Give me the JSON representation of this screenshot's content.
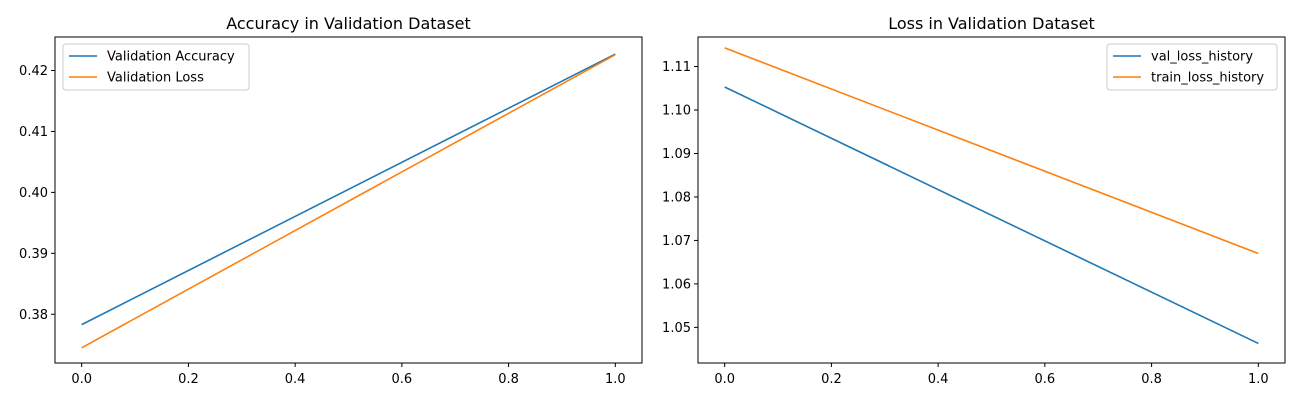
{
  "chart_data": [
    {
      "type": "line",
      "title": "Accuracy in Validation Dataset",
      "xlabel": "",
      "ylabel": "",
      "xlim": [
        -0.05,
        1.05
      ],
      "ylim": [
        0.372,
        0.4255
      ],
      "xticks": [
        0.0,
        0.2,
        0.4,
        0.6,
        0.8,
        1.0
      ],
      "xtick_labels": [
        "0.0",
        "0.2",
        "0.4",
        "0.6",
        "0.8",
        "1.0"
      ],
      "yticks": [
        0.38,
        0.39,
        0.4,
        0.41,
        0.42
      ],
      "ytick_labels": [
        "0.38",
        "0.39",
        "0.40",
        "0.41",
        "0.42"
      ],
      "grid": false,
      "legend_position": "upper-left",
      "series": [
        {
          "name": "Validation Accuracy",
          "color": "#1f77b4",
          "x": [
            0,
            1
          ],
          "y": [
            0.3783,
            0.4227
          ]
        },
        {
          "name": "Validation Loss",
          "color": "#ff7f0e",
          "x": [
            0,
            1
          ],
          "y": [
            0.3745,
            0.4226
          ]
        }
      ]
    },
    {
      "type": "line",
      "title": "Loss in Validation Dataset",
      "xlabel": "",
      "ylabel": "",
      "xlim": [
        -0.05,
        1.05
      ],
      "ylim": [
        1.0418,
        1.1168
      ],
      "xticks": [
        0.0,
        0.2,
        0.4,
        0.6,
        0.8,
        1.0
      ],
      "xtick_labels": [
        "0.0",
        "0.2",
        "0.4",
        "0.6",
        "0.8",
        "1.0"
      ],
      "yticks": [
        1.05,
        1.06,
        1.07,
        1.08,
        1.09,
        1.1,
        1.11
      ],
      "ytick_labels": [
        "1.05",
        "1.06",
        "1.07",
        "1.08",
        "1.09",
        "1.10",
        "1.11"
      ],
      "grid": false,
      "legend_position": "upper-right",
      "series": [
        {
          "name": "val_loss_history",
          "color": "#1f77b4",
          "x": [
            0,
            1
          ],
          "y": [
            1.1053,
            1.0463
          ]
        },
        {
          "name": "train_loss_history",
          "color": "#ff7f0e",
          "x": [
            0,
            1
          ],
          "y": [
            1.1143,
            1.067
          ]
        }
      ]
    }
  ]
}
